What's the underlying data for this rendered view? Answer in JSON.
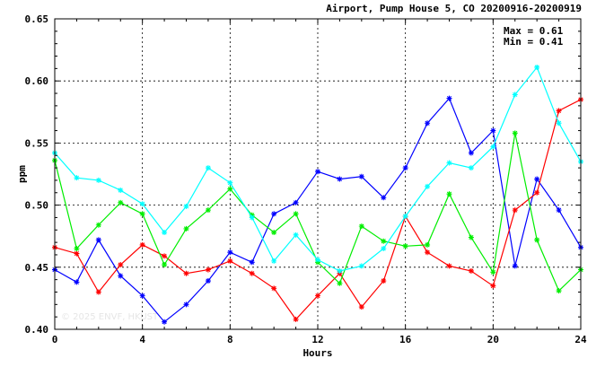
{
  "chart_data": {
    "type": "line",
    "title": "Airport, Pump House 5, CO 20200916-20200919",
    "xlabel": "Hours",
    "ylabel": "ppm",
    "xlim": [
      0,
      24
    ],
    "ylim": [
      0.4,
      0.65
    ],
    "x_ticks": [
      "0",
      "4",
      "8",
      "12",
      "16",
      "20",
      "24"
    ],
    "y_ticks": [
      "0.40",
      "0.45",
      "0.50",
      "0.55",
      "0.60",
      "0.65"
    ],
    "grid": true,
    "annotations": {
      "max_text": "Max = 0.61",
      "min_text": "Min = 0.41"
    },
    "watermark": "© 2025 ENVF, HKUST",
    "x": [
      0,
      1,
      2,
      3,
      4,
      5,
      6,
      7,
      8,
      9,
      10,
      11,
      12,
      13,
      14,
      15,
      16,
      17,
      18,
      19,
      20,
      21,
      22,
      23,
      24
    ],
    "series": [
      {
        "color": "#0000ff",
        "values": [
          0.448,
          0.438,
          0.472,
          0.443,
          0.427,
          0.406,
          0.42,
          0.439,
          0.462,
          0.454,
          0.493,
          0.502,
          0.527,
          0.521,
          0.523,
          0.506,
          0.53,
          0.566,
          0.586,
          0.542,
          0.56,
          0.451,
          0.521,
          0.496,
          0.466
        ]
      },
      {
        "color": "#ff0000",
        "values": [
          0.466,
          0.461,
          0.43,
          0.452,
          0.468,
          0.459,
          0.445,
          0.448,
          0.455,
          0.445,
          0.433,
          0.408,
          0.427,
          0.445,
          0.418,
          0.439,
          0.491,
          0.462,
          0.451,
          0.447,
          0.435,
          0.496,
          0.51,
          0.576,
          0.585
        ]
      },
      {
        "color": "#00ee00",
        "values": [
          0.536,
          0.465,
          0.484,
          0.502,
          0.493,
          0.452,
          0.481,
          0.496,
          0.513,
          0.492,
          0.478,
          0.493,
          0.454,
          0.437,
          0.483,
          0.471,
          0.467,
          0.468,
          0.509,
          0.474,
          0.446,
          0.558,
          0.472,
          0.431,
          0.448
        ]
      },
      {
        "color": "#00ffff",
        "values": [
          0.542,
          0.522,
          0.52,
          0.512,
          0.501,
          0.478,
          0.499,
          0.53,
          0.518,
          0.49,
          0.455,
          0.476,
          0.456,
          0.447,
          0.451,
          0.465,
          0.491,
          0.515,
          0.534,
          0.53,
          0.547,
          0.589,
          0.611,
          0.566,
          0.535
        ]
      }
    ]
  }
}
